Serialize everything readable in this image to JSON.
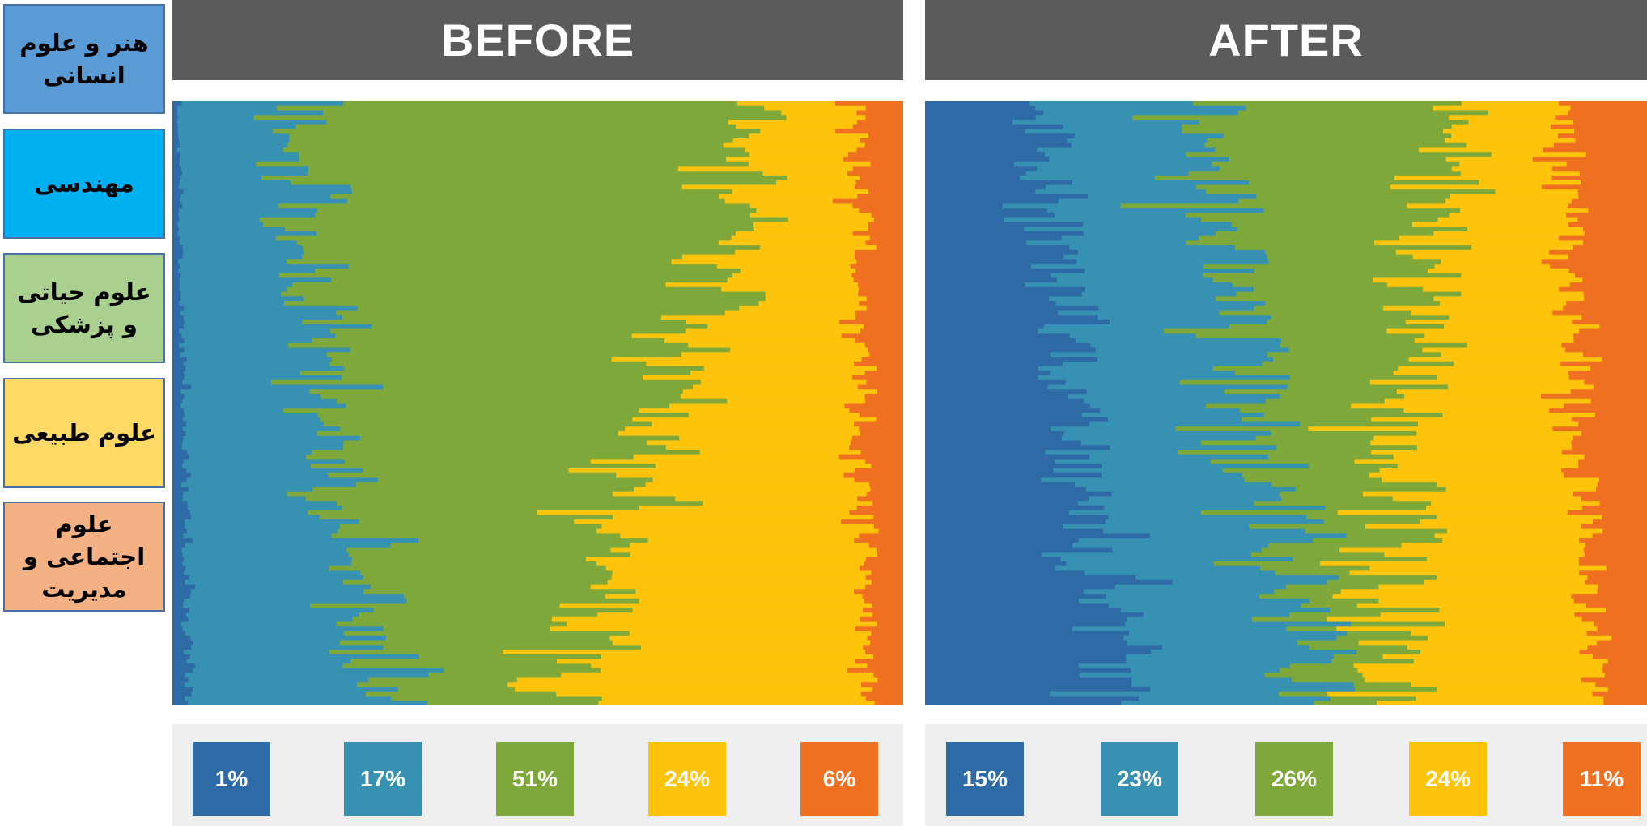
{
  "legend": [
    {
      "label": "هنر و علوم\nانسانی",
      "color": "#5b9bd5"
    },
    {
      "label": "مهندسی",
      "color": "#00b0f0"
    },
    {
      "label": "علوم حیاتی\nو پزشکی",
      "color": "#a9d08e"
    },
    {
      "label": "علوم طبیعی",
      "color": "#ffd966"
    },
    {
      "label": "علوم\nاجتماعی و\nمدیریت",
      "color": "#f4b183"
    }
  ],
  "category_colors": [
    "#2e6aa5",
    "#3691b2",
    "#7ea83a",
    "#fdc40b",
    "#f07021"
  ],
  "chart_data": [
    {
      "type": "bar",
      "title": "BEFORE",
      "categories": [
        "1%",
        "17%",
        "51%",
        "24%",
        "6%"
      ],
      "values": [
        1,
        17,
        51,
        24,
        6
      ]
    },
    {
      "type": "bar",
      "title": "AFTER",
      "categories": [
        "15%",
        "23%",
        "26%",
        "24%",
        "11%"
      ],
      "values": [
        15,
        23,
        26,
        24,
        11
      ]
    }
  ]
}
